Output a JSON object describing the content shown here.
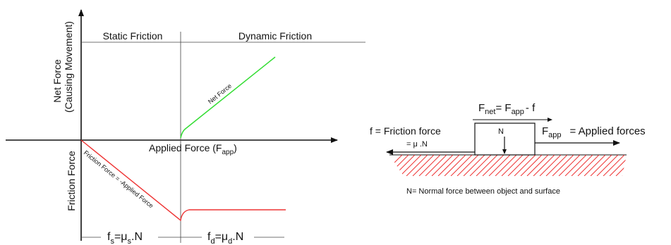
{
  "left_graph": {
    "region_static": "Static Friction",
    "region_dynamic": "Dynamic Friction",
    "y_upper_label_line1": "Net Force",
    "y_upper_label_line2": "(Causing Movement)",
    "y_lower_label": "Friction Force",
    "x_axis_label": "Applied Force (F",
    "x_axis_label_sub": "app",
    "x_axis_label_close": ")",
    "net_force_line_label": "Net Force",
    "friction_line_label": "Friction Force = -Applied Force",
    "fs_formula": {
      "f": "f",
      "f_sub": "s",
      "eq": "=μ",
      "mu_sub": "s",
      "n": ".N"
    },
    "fd_formula": {
      "f": "f",
      "f_sub": "d",
      "eq": "=μ",
      "mu_sub": "d",
      "n": ".N"
    }
  },
  "right_diagram": {
    "fnet_eq": {
      "f1": "F",
      "f1_sub": "net",
      "eq": "= F",
      "f2_sub": "app",
      "minus": "- f"
    },
    "friction_label": "f  = Friction force",
    "friction_eq": "= μ .N",
    "block_label": "N",
    "applied_label": {
      "f": "F",
      "f_sub": "app",
      "rest": "= Applied forces"
    },
    "normal_note": "N= Normal force between object and surface"
  },
  "colors": {
    "net_force_line": "#33dd33",
    "friction_line": "#ee3333",
    "hatch": "#ee3333",
    "axis": "#111111"
  }
}
